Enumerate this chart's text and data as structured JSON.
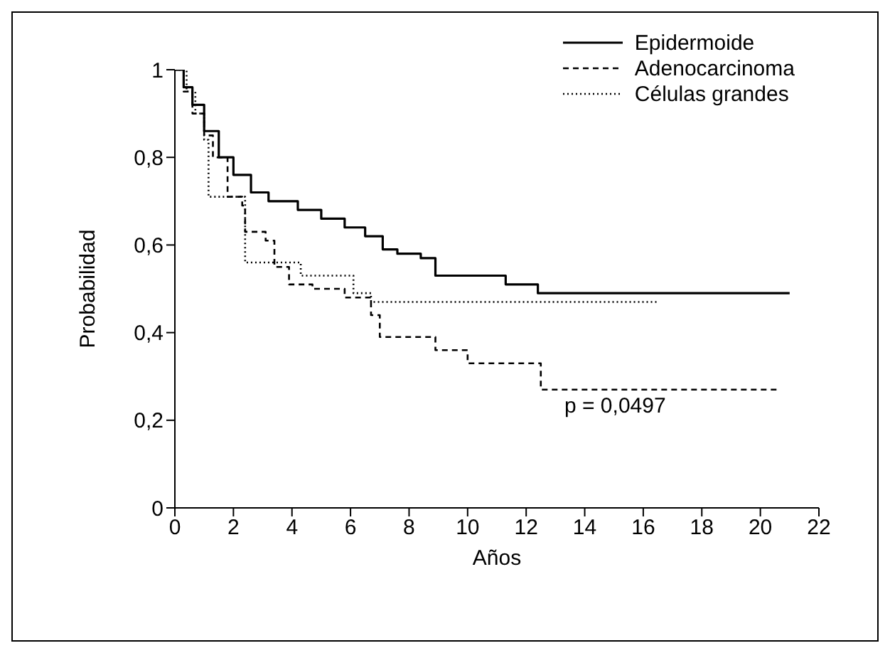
{
  "chart_data": {
    "type": "step",
    "xlabel": "Años",
    "ylabel": "Probabilidad",
    "xlim": [
      0,
      22
    ],
    "xticks": [
      0,
      2,
      4,
      6,
      8,
      10,
      12,
      14,
      16,
      18,
      20,
      22
    ],
    "ylim": [
      0,
      1
    ],
    "yticks": [
      0,
      {
        "value": 0.2,
        "label": "0,2"
      },
      {
        "value": 0.4,
        "label": "0,4"
      },
      {
        "value": 0.6,
        "label": "0,6"
      },
      {
        "value": 0.8,
        "label": "0,8"
      },
      1
    ],
    "legend": "top right",
    "marker": "none",
    "annotations": [
      "p = 0,0497"
    ],
    "series": [
      {
        "name": "Epidermoide",
        "color": "#000000",
        "line_style": "solid",
        "x": [
          0,
          0.3,
          0.6,
          1,
          1.5,
          2,
          2.6,
          3.2,
          4.2,
          5,
          5.8,
          6.5,
          7.1,
          7.6,
          8.4,
          8.9,
          11.3,
          12.4,
          12.7,
          21
        ],
        "values": [
          1,
          0.96,
          0.92,
          0.86,
          0.8,
          0.76,
          0.72,
          0.7,
          0.68,
          0.66,
          0.64,
          0.62,
          0.59,
          0.58,
          0.57,
          0.53,
          0.51,
          0.49,
          0.49,
          0.49
        ]
      },
      {
        "name": "Adenocarcinoma",
        "color": "#000000",
        "line_style": "dashed",
        "x": [
          0,
          0.3,
          0.6,
          1,
          1.3,
          1.8,
          2.3,
          2.4,
          3.1,
          3.4,
          3.9,
          4.7,
          5.8,
          6.7,
          7,
          8.9,
          10,
          12.5,
          20.6
        ],
        "values": [
          1,
          0.95,
          0.9,
          0.85,
          0.8,
          0.71,
          0.69,
          0.63,
          0.61,
          0.55,
          0.51,
          0.5,
          0.48,
          0.44,
          0.39,
          0.36,
          0.33,
          0.27,
          0.27
        ]
      },
      {
        "name": "Células grandes",
        "color": "#000000",
        "line_style": "dotted",
        "x": [
          0,
          0.4,
          0.7,
          1,
          1.15,
          2.4,
          4.3,
          6.1,
          6.7,
          16.5
        ],
        "values": [
          1,
          0.95,
          0.9,
          0.84,
          0.71,
          0.56,
          0.53,
          0.49,
          0.47,
          0.47
        ]
      }
    ]
  }
}
